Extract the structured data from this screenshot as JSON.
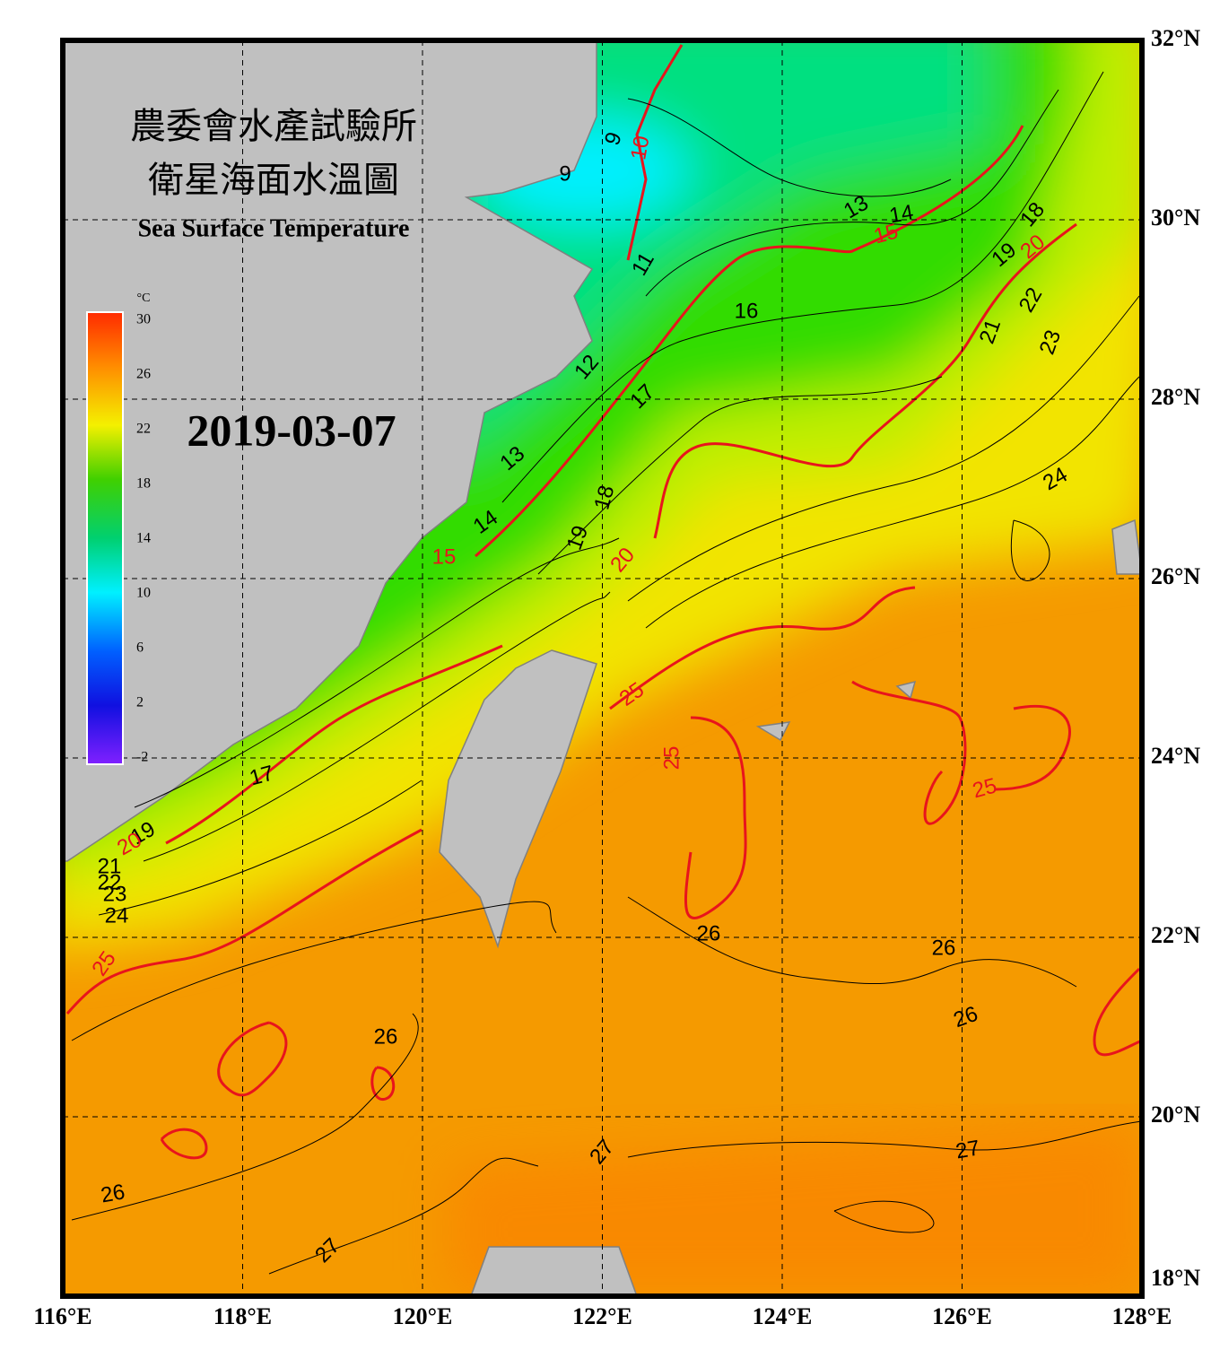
{
  "map": {
    "title_zh_1": "農委會水產試驗所",
    "title_zh_2": "衛星海面水溫圖",
    "title_en": "Sea Surface Temperature",
    "date": "2019-03-07",
    "colorbar": {
      "unit": "°C",
      "range": [
        -2,
        30
      ],
      "ticks": [
        30,
        26,
        22,
        18,
        14,
        10,
        6,
        2,
        -2
      ]
    },
    "lon_ticks": [
      {
        "value": 116,
        "label": "116°E"
      },
      {
        "value": 118,
        "label": "118°E"
      },
      {
        "value": 120,
        "label": "120°E"
      },
      {
        "value": 122,
        "label": "122°E"
      },
      {
        "value": 124,
        "label": "124°E"
      },
      {
        "value": 126,
        "label": "126°E"
      },
      {
        "value": 128,
        "label": "128°E"
      }
    ],
    "lat_ticks": [
      {
        "value": 32,
        "label": "32°N"
      },
      {
        "value": 30,
        "label": "30°N"
      },
      {
        "value": 28,
        "label": "28°N"
      },
      {
        "value": 26,
        "label": "26°N"
      },
      {
        "value": 24,
        "label": "24°N"
      },
      {
        "value": 22,
        "label": "22°N"
      },
      {
        "value": 20,
        "label": "20°N"
      },
      {
        "value": 18,
        "label": "18°N"
      }
    ],
    "lon_range": [
      116,
      128
    ],
    "lat_range": [
      18,
      32
    ],
    "contour_labels": [
      "9",
      "9",
      "10",
      "11",
      "12",
      "13",
      "14",
      "15",
      "13",
      "14",
      "15",
      "16",
      "17",
      "18",
      "19",
      "20",
      "18",
      "19",
      "20",
      "21",
      "22",
      "23",
      "24",
      "25",
      "25",
      "25",
      "25",
      "26",
      "26",
      "26",
      "26",
      "26",
      "27",
      "27",
      "27",
      "17",
      "19",
      "20",
      "21",
      "22",
      "23",
      "24"
    ]
  }
}
